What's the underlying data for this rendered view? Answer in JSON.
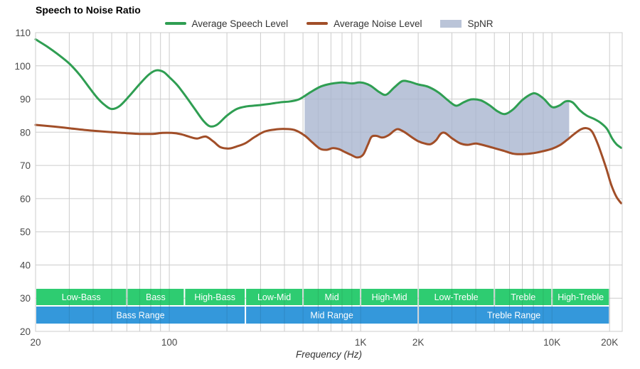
{
  "chart_data": {
    "type": "line",
    "title": "Speech to Noise Ratio",
    "xlabel": "Frequency (Hz)",
    "ylabel": "",
    "x_scale": "log",
    "xlim": [
      20,
      23300
    ],
    "ylim": [
      20,
      110
    ],
    "grid": true,
    "legend_position": "top-center",
    "spnr_label": "SpNR",
    "x_ticks": [
      {
        "f": 20,
        "label": "20"
      },
      {
        "f": 100,
        "label": "100"
      },
      {
        "f": 1000,
        "label": "1K"
      },
      {
        "f": 2000,
        "label": "2K"
      },
      {
        "f": 10000,
        "label": "10K"
      },
      {
        "f": 20000,
        "label": "20K"
      }
    ],
    "y_ticks": [
      110,
      100,
      90,
      80,
      70,
      60,
      50,
      40,
      30,
      20
    ],
    "series": [
      {
        "name": "Average Speech Level",
        "color_key": "speech",
        "points": [
          [
            20,
            108.0
          ],
          [
            23,
            105.8
          ],
          [
            26,
            103.6
          ],
          [
            30,
            100.7
          ],
          [
            34,
            97.3
          ],
          [
            38,
            93.6
          ],
          [
            42,
            90.4
          ],
          [
            46,
            88.2
          ],
          [
            50,
            87.0
          ],
          [
            55,
            87.9
          ],
          [
            62,
            91.0
          ],
          [
            70,
            94.5
          ],
          [
            78,
            97.3
          ],
          [
            85,
            98.6
          ],
          [
            93,
            98.2
          ],
          [
            100,
            96.6
          ],
          [
            110,
            94.2
          ],
          [
            122,
            90.8
          ],
          [
            136,
            87.0
          ],
          [
            150,
            83.6
          ],
          [
            163,
            81.8
          ],
          [
            178,
            82.3
          ],
          [
            200,
            85.0
          ],
          [
            225,
            87.0
          ],
          [
            255,
            87.8
          ],
          [
            290,
            88.1
          ],
          [
            330,
            88.5
          ],
          [
            380,
            89.0
          ],
          [
            430,
            89.3
          ],
          [
            480,
            90.0
          ],
          [
            545,
            92.0
          ],
          [
            620,
            93.8
          ],
          [
            700,
            94.6
          ],
          [
            800,
            95.0
          ],
          [
            900,
            94.7
          ],
          [
            1000,
            95.0
          ],
          [
            1120,
            94.1
          ],
          [
            1250,
            92.1
          ],
          [
            1360,
            91.3
          ],
          [
            1500,
            93.5
          ],
          [
            1650,
            95.4
          ],
          [
            1800,
            95.2
          ],
          [
            2000,
            94.4
          ],
          [
            2250,
            93.7
          ],
          [
            2550,
            92.0
          ],
          [
            2850,
            89.7
          ],
          [
            3150,
            88.0
          ],
          [
            3450,
            89.0
          ],
          [
            3800,
            89.9
          ],
          [
            4250,
            89.6
          ],
          [
            4700,
            88.2
          ],
          [
            5200,
            86.3
          ],
          [
            5700,
            85.5
          ],
          [
            6300,
            87.0
          ],
          [
            7000,
            89.7
          ],
          [
            7800,
            91.5
          ],
          [
            8300,
            91.6
          ],
          [
            9100,
            90.0
          ],
          [
            10000,
            87.6
          ],
          [
            10900,
            88.0
          ],
          [
            11800,
            89.3
          ],
          [
            12800,
            89.0
          ],
          [
            14000,
            86.6
          ],
          [
            15200,
            85.0
          ],
          [
            16600,
            84.0
          ],
          [
            18000,
            82.8
          ],
          [
            19400,
            81.0
          ],
          [
            20700,
            78.0
          ],
          [
            21800,
            76.3
          ],
          [
            23000,
            75.3
          ]
        ]
      },
      {
        "name": "Average Noise Level",
        "color_key": "noise",
        "points": [
          [
            20,
            82.2
          ],
          [
            25,
            81.7
          ],
          [
            30,
            81.2
          ],
          [
            36,
            80.7
          ],
          [
            43,
            80.3
          ],
          [
            50,
            80.0
          ],
          [
            60,
            79.7
          ],
          [
            70,
            79.5
          ],
          [
            82,
            79.5
          ],
          [
            92,
            79.8
          ],
          [
            103,
            79.8
          ],
          [
            115,
            79.4
          ],
          [
            128,
            78.6
          ],
          [
            140,
            78.1
          ],
          [
            155,
            78.7
          ],
          [
            170,
            77.2
          ],
          [
            185,
            75.5
          ],
          [
            205,
            75.1
          ],
          [
            225,
            75.7
          ],
          [
            250,
            76.7
          ],
          [
            280,
            78.6
          ],
          [
            315,
            80.2
          ],
          [
            355,
            80.8
          ],
          [
            400,
            81.0
          ],
          [
            450,
            80.7
          ],
          [
            510,
            79.0
          ],
          [
            560,
            76.9
          ],
          [
            615,
            75.0
          ],
          [
            665,
            74.7
          ],
          [
            715,
            75.2
          ],
          [
            770,
            74.9
          ],
          [
            830,
            74.0
          ],
          [
            890,
            73.2
          ],
          [
            960,
            72.4
          ],
          [
            1030,
            73.2
          ],
          [
            1090,
            76.2
          ],
          [
            1140,
            78.6
          ],
          [
            1210,
            78.9
          ],
          [
            1300,
            78.4
          ],
          [
            1400,
            79.1
          ],
          [
            1510,
            80.6
          ],
          [
            1580,
            80.9
          ],
          [
            1700,
            80.0
          ],
          [
            1850,
            78.5
          ],
          [
            2000,
            77.3
          ],
          [
            2160,
            76.6
          ],
          [
            2320,
            76.4
          ],
          [
            2480,
            77.6
          ],
          [
            2620,
            79.5
          ],
          [
            2760,
            79.8
          ],
          [
            3000,
            78.2
          ],
          [
            3300,
            76.7
          ],
          [
            3620,
            76.2
          ],
          [
            4000,
            76.6
          ],
          [
            4450,
            76.0
          ],
          [
            5000,
            75.2
          ],
          [
            5600,
            74.4
          ],
          [
            6300,
            73.5
          ],
          [
            7000,
            73.4
          ],
          [
            8000,
            73.7
          ],
          [
            9000,
            74.3
          ],
          [
            10000,
            75.0
          ],
          [
            11000,
            76.1
          ],
          [
            12000,
            77.7
          ],
          [
            13100,
            79.5
          ],
          [
            14200,
            80.9
          ],
          [
            15200,
            81.2
          ],
          [
            16200,
            80.2
          ],
          [
            17300,
            76.7
          ],
          [
            18300,
            72.8
          ],
          [
            19300,
            68.8
          ],
          [
            20400,
            64.2
          ],
          [
            21700,
            60.6
          ],
          [
            23000,
            58.6
          ]
        ]
      }
    ],
    "spnr_fill_between": {
      "upper": "Average Speech Level",
      "lower": "Average Noise Level",
      "from_hz": 510,
      "to_hz": 12300
    },
    "frequency_bands": {
      "detail": [
        {
          "label": "Low-Bass",
          "from": 20,
          "to": 60
        },
        {
          "label": "Bass",
          "from": 60,
          "to": 120
        },
        {
          "label": "High-Bass",
          "from": 120,
          "to": 250
        },
        {
          "label": "Low-Mid",
          "from": 250,
          "to": 500
        },
        {
          "label": "Mid",
          "from": 500,
          "to": 1000
        },
        {
          "label": "High-Mid",
          "from": 1000,
          "to": 2000
        },
        {
          "label": "Low-Treble",
          "from": 2000,
          "to": 5000
        },
        {
          "label": "Treble",
          "from": 5000,
          "to": 10000
        },
        {
          "label": "High-Treble",
          "from": 10000,
          "to": 20000
        }
      ],
      "range": [
        {
          "label": "Bass Range",
          "from": 20,
          "to": 250
        },
        {
          "label": "Mid Range",
          "from": 250,
          "to": 2000
        },
        {
          "label": "Treble Range",
          "from": 2000,
          "to": 20000
        }
      ]
    },
    "colors": {
      "speech": "#2f9e52",
      "noise": "#a14e28",
      "spnr_fill": "#a9b5cf",
      "spnr_swatch": "#bac4d8",
      "band_green": "#2ecc71",
      "band_blue": "#3498db",
      "band_text": "#ffffff",
      "grid": "#cccccc",
      "tick_text": "#4a4a4a"
    }
  }
}
